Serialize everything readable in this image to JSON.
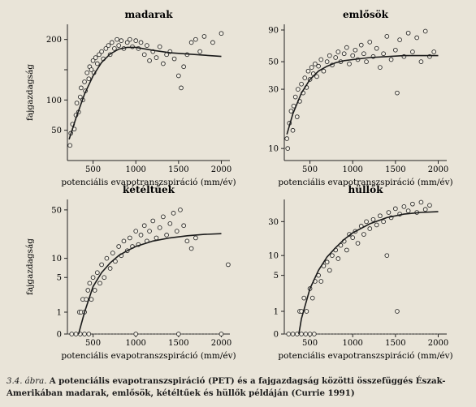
{
  "caption": {
    "number": "3.4. ábra.",
    "text": "A potenciális evapotranszspiráció (PET) és a fajgazdagság közötti összefüggés Észak-Amerikában madarak, emlősök, kétéltűek és hüllők példáján (Currie 1991)"
  },
  "chart_data": [
    {
      "type": "scatter",
      "title": "madarak",
      "xlabel": "potenciális evapotranszspiráció (mm/év)",
      "ylabel": "fajgazdagság",
      "x_ticks": [
        500,
        1000,
        1500,
        2000
      ],
      "y_ticks": [
        50,
        100,
        150,
        200
      ],
      "y_tick_labels": [
        "50",
        "100",
        "",
        "200"
      ],
      "xlim": [
        200,
        2100
      ],
      "ylim": [
        0,
        225
      ],
      "yscale": "linear",
      "trend_line": [
        [
          220,
          35
        ],
        [
          300,
          70
        ],
        [
          400,
          110
        ],
        [
          500,
          140
        ],
        [
          600,
          162
        ],
        [
          700,
          176
        ],
        [
          800,
          184
        ],
        [
          900,
          187
        ],
        [
          1000,
          187
        ],
        [
          1200,
          182
        ],
        [
          1400,
          178
        ],
        [
          1600,
          176
        ],
        [
          1800,
          174
        ],
        [
          2000,
          172
        ]
      ],
      "points": [
        [
          230,
          25
        ],
        [
          240,
          45
        ],
        [
          260,
          60
        ],
        [
          280,
          52
        ],
        [
          300,
          75
        ],
        [
          310,
          95
        ],
        [
          330,
          80
        ],
        [
          350,
          105
        ],
        [
          360,
          120
        ],
        [
          380,
          100
        ],
        [
          400,
          130
        ],
        [
          410,
          115
        ],
        [
          430,
          145
        ],
        [
          450,
          135
        ],
        [
          460,
          155
        ],
        [
          480,
          150
        ],
        [
          500,
          165
        ],
        [
          510,
          145
        ],
        [
          530,
          170
        ],
        [
          550,
          160
        ],
        [
          570,
          175
        ],
        [
          600,
          180
        ],
        [
          620,
          168
        ],
        [
          650,
          185
        ],
        [
          680,
          190
        ],
        [
          700,
          175
        ],
        [
          720,
          195
        ],
        [
          750,
          185
        ],
        [
          780,
          200
        ],
        [
          800,
          190
        ],
        [
          830,
          198
        ],
        [
          860,
          185
        ],
        [
          900,
          195
        ],
        [
          930,
          200
        ],
        [
          960,
          188
        ],
        [
          1000,
          198
        ],
        [
          1030,
          185
        ],
        [
          1060,
          195
        ],
        [
          1100,
          175
        ],
        [
          1130,
          190
        ],
        [
          1160,
          165
        ],
        [
          1200,
          180
        ],
        [
          1240,
          170
        ],
        [
          1280,
          188
        ],
        [
          1320,
          160
        ],
        [
          1360,
          175
        ],
        [
          1400,
          180
        ],
        [
          1450,
          168
        ],
        [
          1500,
          140
        ],
        [
          1530,
          120
        ],
        [
          1560,
          155
        ],
        [
          1600,
          175
        ],
        [
          1650,
          195
        ],
        [
          1700,
          200
        ],
        [
          1750,
          180
        ],
        [
          1800,
          205
        ],
        [
          1900,
          195
        ],
        [
          2000,
          210
        ]
      ]
    },
    {
      "type": "scatter",
      "title": "emlősök",
      "xlabel": "potenciális evapotranszspiráció (mm/év)",
      "ylabel": "",
      "x_ticks": [
        500,
        1000,
        1500,
        2000
      ],
      "y_ticks": [
        10,
        30,
        50,
        90
      ],
      "y_tick_labels": [
        "10",
        "30",
        "50",
        "90"
      ],
      "xlim": [
        200,
        2100
      ],
      "ylim": [
        8,
        100
      ],
      "yscale": "log",
      "trend_line": [
        [
          230,
          13
        ],
        [
          300,
          19
        ],
        [
          400,
          28
        ],
        [
          500,
          36
        ],
        [
          600,
          42
        ],
        [
          700,
          46
        ],
        [
          800,
          49
        ],
        [
          900,
          51
        ],
        [
          1000,
          52
        ],
        [
          1200,
          54
        ],
        [
          1400,
          55
        ],
        [
          1600,
          56
        ],
        [
          1800,
          56
        ],
        [
          2000,
          56
        ]
      ],
      "points": [
        [
          230,
          12
        ],
        [
          240,
          10
        ],
        [
          260,
          16
        ],
        [
          280,
          20
        ],
        [
          300,
          14
        ],
        [
          310,
          22
        ],
        [
          330,
          26
        ],
        [
          350,
          18
        ],
        [
          360,
          30
        ],
        [
          380,
          24
        ],
        [
          400,
          33
        ],
        [
          420,
          28
        ],
        [
          440,
          37
        ],
        [
          460,
          31
        ],
        [
          480,
          42
        ],
        [
          500,
          36
        ],
        [
          520,
          45
        ],
        [
          540,
          40
        ],
        [
          560,
          48
        ],
        [
          580,
          38
        ],
        [
          600,
          46
        ],
        [
          630,
          52
        ],
        [
          660,
          42
        ],
        [
          700,
          50
        ],
        [
          730,
          56
        ],
        [
          760,
          47
        ],
        [
          800,
          54
        ],
        [
          830,
          60
        ],
        [
          860,
          50
        ],
        [
          900,
          58
        ],
        [
          930,
          65
        ],
        [
          960,
          48
        ],
        [
          1000,
          56
        ],
        [
          1030,
          62
        ],
        [
          1060,
          52
        ],
        [
          1100,
          68
        ],
        [
          1130,
          58
        ],
        [
          1160,
          50
        ],
        [
          1200,
          72
        ],
        [
          1240,
          55
        ],
        [
          1280,
          64
        ],
        [
          1320,
          45
        ],
        [
          1360,
          58
        ],
        [
          1400,
          80
        ],
        [
          1450,
          52
        ],
        [
          1500,
          62
        ],
        [
          1520,
          28
        ],
        [
          1550,
          75
        ],
        [
          1600,
          55
        ],
        [
          1650,
          85
        ],
        [
          1700,
          60
        ],
        [
          1750,
          78
        ],
        [
          1800,
          50
        ],
        [
          1850,
          88
        ],
        [
          1900,
          55
        ],
        [
          1950,
          60
        ]
      ]
    },
    {
      "type": "scatter",
      "title": "kétéltűek",
      "xlabel": "potenciális evapotranszspiráció (mm/év)",
      "ylabel": "fajgazdagság",
      "x_ticks": [
        500,
        1000,
        1500,
        2000
      ],
      "y_ticks": [
        0,
        1,
        5,
        10,
        50
      ],
      "y_tick_labels": [
        "0",
        "1",
        "5",
        "10",
        "50"
      ],
      "xlim": [
        200,
        2100
      ],
      "ylim": [
        0,
        70
      ],
      "yscale": "log1p",
      "trend_line": [
        [
          330,
          0
        ],
        [
          400,
          1
        ],
        [
          500,
          3.5
        ],
        [
          600,
          6
        ],
        [
          700,
          8.5
        ],
        [
          800,
          11
        ],
        [
          900,
          13
        ],
        [
          1000,
          15
        ],
        [
          1200,
          18
        ],
        [
          1400,
          20
        ],
        [
          1600,
          21.5
        ],
        [
          1800,
          22.5
        ],
        [
          2000,
          23
        ]
      ],
      "points": [
        [
          250,
          0
        ],
        [
          300,
          0
        ],
        [
          350,
          0
        ],
        [
          400,
          0
        ],
        [
          450,
          0
        ],
        [
          1000,
          0
        ],
        [
          1500,
          0
        ],
        [
          2000,
          0
        ],
        [
          340,
          1
        ],
        [
          360,
          1
        ],
        [
          380,
          2
        ],
        [
          400,
          1
        ],
        [
          420,
          2
        ],
        [
          440,
          3
        ],
        [
          460,
          4
        ],
        [
          480,
          2
        ],
        [
          500,
          5
        ],
        [
          520,
          3
        ],
        [
          550,
          6
        ],
        [
          580,
          4
        ],
        [
          600,
          8
        ],
        [
          630,
          5
        ],
        [
          660,
          10
        ],
        [
          700,
          7
        ],
        [
          730,
          12
        ],
        [
          760,
          9
        ],
        [
          800,
          15
        ],
        [
          830,
          11
        ],
        [
          860,
          18
        ],
        [
          900,
          13
        ],
        [
          930,
          20
        ],
        [
          960,
          15
        ],
        [
          1000,
          25
        ],
        [
          1030,
          16
        ],
        [
          1060,
          22
        ],
        [
          1100,
          30
        ],
        [
          1130,
          18
        ],
        [
          1160,
          25
        ],
        [
          1200,
          35
        ],
        [
          1240,
          20
        ],
        [
          1280,
          28
        ],
        [
          1320,
          40
        ],
        [
          1360,
          22
        ],
        [
          1400,
          32
        ],
        [
          1440,
          45
        ],
        [
          1480,
          25
        ],
        [
          1520,
          50
        ],
        [
          1560,
          30
        ],
        [
          1600,
          18
        ],
        [
          1650,
          14
        ],
        [
          1700,
          20
        ],
        [
          2080,
          8
        ]
      ]
    },
    {
      "type": "scatter",
      "title": "hüllők",
      "xlabel": "potenciális evapotranszspiráció (mm/év)",
      "ylabel": "",
      "x_ticks": [
        500,
        1000,
        1500,
        2000
      ],
      "y_ticks": [
        0,
        1,
        5,
        10,
        30
      ],
      "y_tick_labels": [
        "0",
        "1",
        "5",
        "10",
        "30"
      ],
      "xlim": [
        200,
        2100
      ],
      "ylim": [
        0,
        60
      ],
      "yscale": "log1p",
      "trend_line": [
        [
          370,
          0
        ],
        [
          400,
          0.6
        ],
        [
          500,
          3
        ],
        [
          600,
          6
        ],
        [
          700,
          9.5
        ],
        [
          800,
          13
        ],
        [
          900,
          17
        ],
        [
          1000,
          21
        ],
        [
          1200,
          28
        ],
        [
          1400,
          34
        ],
        [
          1600,
          38
        ],
        [
          1800,
          40
        ],
        [
          2000,
          41
        ]
      ],
      "points": [
        [
          250,
          0
        ],
        [
          300,
          0
        ],
        [
          350,
          0
        ],
        [
          400,
          0
        ],
        [
          450,
          0
        ],
        [
          500,
          0
        ],
        [
          550,
          0
        ],
        [
          380,
          1
        ],
        [
          400,
          1
        ],
        [
          430,
          2
        ],
        [
          460,
          1
        ],
        [
          500,
          3
        ],
        [
          530,
          2
        ],
        [
          560,
          4
        ],
        [
          600,
          5
        ],
        [
          630,
          4
        ],
        [
          660,
          7
        ],
        [
          700,
          8
        ],
        [
          730,
          6
        ],
        [
          760,
          10
        ],
        [
          800,
          12
        ],
        [
          830,
          9
        ],
        [
          860,
          14
        ],
        [
          900,
          16
        ],
        [
          930,
          12
        ],
        [
          960,
          20
        ],
        [
          1000,
          18
        ],
        [
          1030,
          22
        ],
        [
          1060,
          15
        ],
        [
          1100,
          26
        ],
        [
          1130,
          20
        ],
        [
          1160,
          30
        ],
        [
          1200,
          24
        ],
        [
          1240,
          32
        ],
        [
          1280,
          27
        ],
        [
          1320,
          36
        ],
        [
          1360,
          30
        ],
        [
          1400,
          10
        ],
        [
          1420,
          40
        ],
        [
          1450,
          34
        ],
        [
          1500,
          45
        ],
        [
          1520,
          1
        ],
        [
          1550,
          38
        ],
        [
          1600,
          48
        ],
        [
          1650,
          42
        ],
        [
          1700,
          52
        ],
        [
          1750,
          40
        ],
        [
          1800,
          55
        ],
        [
          1850,
          44
        ],
        [
          1900,
          50
        ]
      ]
    }
  ]
}
